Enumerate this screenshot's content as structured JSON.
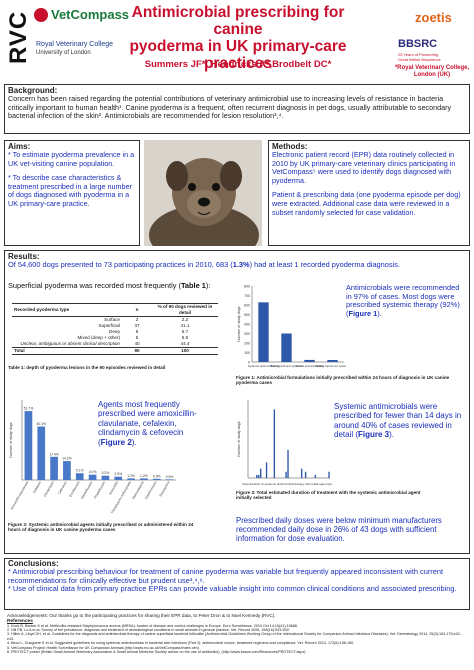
{
  "header": {
    "rvc_logo": "RVC",
    "vetcompass_logo": "VetCompass",
    "rvc_name_line1": "Royal Veterinary College",
    "rvc_name_line2": "University of London",
    "title_line1": "Antimicrobial prescribing for canine",
    "title_line2": "pyoderma in UK primary-care practices",
    "authors": "Summers JF*, Hendricks A*,Brodbelt DC*",
    "affil_line1": "*Royal Veterinary College,",
    "affil_line2": "London (UK)",
    "zoetis_logo": "zoetis",
    "bbsrc_logo": "BBSRC",
    "bbsrc_sub1": "25 Years of Pioneering",
    "bbsrc_sub2": "Great British Bioscience"
  },
  "background": {
    "heading": "Background:",
    "text": "Concern has been raised regarding the potential contributions of veterinary antimicrobial use to increasing levels of resistance in bacteria critically important to human health¹. Canine pyoderma is a frequent, often recurrent diagnosis in pet dogs, usually attributable to secondary bacterial infection of the skin². Antimicrobials are recommended for lesion resolution³,⁴."
  },
  "aims": {
    "heading": "Aims:",
    "bullet1": "* To estimate pyoderma prevalence in a UK vet-visiting canine population.",
    "bullet2": "* To describe case characteristics & treatment prescribed in a large number of dogs diagnosed with pyoderma in a UK primary-care practice."
  },
  "methods": {
    "heading": "Methods:",
    "text1": "Electronic patient record (EPR) data routinely collected in 2010 by UK primary-care veterinary clinics participating in VetCompass⁵ were used to identify dogs diagnosed with pyoderma.",
    "text2": "Patient & prescribing data (one pyoderma episode per dog) were extracted.  Additional case data were reviewed in a subset randomly selected for case validation."
  },
  "results": {
    "heading": "Results:",
    "intro_a": "Of 54,600 dogs presented to 73 participating practices in 2010, 683 (",
    "intro_pct": "1.3%",
    "intro_b": ") had at least 1 recorded pyoderma diagnosis.",
    "table_intro_a": "Superficial pyoderma was recorded most frequently (",
    "table_intro_ref": "Table 1",
    "table_intro_b": "):",
    "table": {
      "col1": "Recorded pyoderma type",
      "col2": "% of 90 dogs reviewed in detail",
      "col_n": "n",
      "rows": [
        {
          "type": "Surface",
          "n": "2",
          "pct": "2.2"
        },
        {
          "type": "Superficial",
          "n": "37",
          "pct": "41.1"
        },
        {
          "type": "Deep",
          "n": "6",
          "pct": "6.7"
        },
        {
          "type": "Mixed (deep + other)",
          "n": "5",
          "pct": "5.6"
        },
        {
          "type": "Unclear, ambiguous or absent clinical description",
          "n": "40",
          "pct": "44.4"
        },
        {
          "type": "Total",
          "n": "90",
          "pct": "100"
        }
      ]
    },
    "table_caption": "Table 1: depth of pyoderma lesions in the 90 episodes reviewed in detail",
    "fig1_text_a": "Antimicrobials were recommended in 97% of cases. Most dogs were prescribed systemic therapy (92%) (",
    "fig1_text_ref": "Figure 1",
    "fig1_text_b": ").",
    "fig1_caption": "Figure 1: Antimicrobial formulations initially prescribed within 24 hours of diagnosis in UK canine pyoderma cases",
    "fig2_text_a": "Agents most frequently prescribed were amoxicillin-clavulanate, cefalexin, clindamycin & cefovecin (",
    "fig2_text_ref": "Figure 2",
    "fig2_text_b": ").",
    "fig2_caption": "Figure 2: Systemic antimicrobial agents initially prescribed or administered within 24 hours of diagnosis in UK canine pyoderma cases",
    "fig3_text_a": "Systemic antimicrobials were prescribed for fewer than 14 days in around 40% of cases reviewed in detail (",
    "fig3_text_ref": "Figure 3",
    "fig3_text_b": ").",
    "fig3_caption": "Figure 3: Total estimated duration of treatment with the systemic antimicrobial agent initially selected",
    "dose_text": "Prescribed daily doses were below minimum manufacturers recommended daily dose in 26% of 43 dogs with sufficient information for dose evaluation."
  },
  "conclusions": {
    "heading": "Conclusions:",
    "bullet1": "* Antimicrobial prescribing behaviour for treatment of canine pyoderma was variable but frequently appeared inconsistent with current recommendations for clinically effective but prudent use³,⁴,⁶.",
    "bullet2": "* Use of clinical data from primary practice EPRs can provide valuable insight into common clinical conditions and associated prescribing."
  },
  "footer": {
    "ack": "Acknowledgements: Our thanks go to the participating practices for sharing their EPR data, to Peter Dron & to Noel Kennedy (RVC).",
    "ref_heading": "References",
    "refs": [
      "1. Kock R, Becker K et al. Methicillin-resistant Staphylococcus aureus (MRSA): burden of disease and control challenges in Europe. Euro Surveillance. 2010 Oct 14;15(41):19688.",
      "2. Hill PB, Lo A et al. Survey of the prevalence, diagnosis and treatment of dermatological conditions in small animals in general practice. Vet. Record 2006, 158(16):533-539.",
      "3. Hillier A, Lloyd DH, et al. Guidelines for the diagnosis and antimicrobial therapy of canine superficial bacterial folliculitis (Antimicrobial Guidelines Working Group of the International Society for Companion Animal Infectious Diseases). Vet. Dermatology 2014, 25(3):163-175,e42-e43.",
      "4. Beco L, Guaguere E et al. Suggested guidelines for using systemic antimicrobials in bacterial skin infections (Part 2): antimicrobial choice, treatment regimens and compliance. Vet. Record 2013, 172(6):156-160.",
      "5. VetCompass Project: Health Surveillance for UK Companion Animals (http://www.rvc.ac.uk/VetCompass/Index.cfm)",
      "6. PROTECT poster (British Small Animal Veterinary Association & Small Animal Medicine Society advice on the use of antibiotics). (http://www.bsava.com/Resources/PROTECT.aspx)"
    ]
  },
  "colors": {
    "title": "#c8102e",
    "body_blue": "#1a2fb8",
    "bar_blue": "#2d57a8",
    "bar_light": "#4a78c9"
  },
  "chart_data": [
    {
      "type": "bar",
      "title": "",
      "ylabel": "Number of study dogs",
      "xlabel": "",
      "ylim": [
        0,
        800
      ],
      "yticks": [
        0,
        100,
        200,
        300,
        400,
        500,
        600,
        700,
        800
      ],
      "categories": [
        "Systemic antimicrobial(s)",
        "Both topical and systemic",
        "Topical antimicrobial(s)",
        "Neither topical nor systemic"
      ],
      "values": [
        628,
        300,
        22,
        21
      ],
      "labels": [
        "",
        "",
        "",
        ""
      ]
    },
    {
      "type": "bar",
      "title": "",
      "ylabel": "Number of study dogs",
      "xlabel": "",
      "ylim": [
        0,
        60
      ],
      "categories": [
        "Amoxicillin-clavulanate",
        "Cefalexin",
        "Clindamycin",
        "Cefovecin",
        "Enrofloxacin",
        "Marbofloxacin",
        "Pradofloxacin",
        "Amoxicillin",
        "Trimethoprim-sulfonamide",
        "Metronidazole",
        "Clarithromycin",
        "Doxycycline"
      ],
      "values": [
        51.7,
        40.1,
        17.4,
        14.2,
        5.1,
        4.0,
        3.2,
        2.5,
        1.2,
        1.2,
        0.9,
        0.5
      ],
      "labels": [
        "51.7%",
        "40.1%",
        "17.4%",
        "14.2%",
        "5.1%",
        "4.0%",
        "3.2%",
        "2.5%",
        "1.2%",
        "1.2%",
        "0.9%",
        "0.5%"
      ]
    },
    {
      "type": "bar",
      "title": "",
      "ylabel": "Number of study dogs",
      "xlabel": "Total duration of systemic antimicrobial therapy with initial agent (days)",
      "ylim": [
        0,
        25
      ],
      "x": [
        1,
        2,
        3,
        4,
        5,
        6,
        7,
        8,
        9,
        10,
        11,
        12,
        13,
        14,
        15,
        16,
        17,
        18,
        19,
        20,
        21,
        22,
        23,
        24,
        25,
        26,
        27,
        28,
        29,
        30,
        31,
        32,
        33,
        34,
        35,
        36,
        37,
        38,
        39,
        40,
        41,
        42
      ],
      "values": [
        0,
        0,
        0,
        0,
        1,
        1,
        3,
        0,
        0,
        5,
        0,
        0,
        0,
        22,
        0,
        0,
        0,
        0,
        0,
        2,
        9,
        0,
        0,
        0,
        0,
        0,
        0,
        3,
        0,
        2,
        0,
        0,
        0,
        0,
        1,
        0,
        0,
        0,
        0,
        0,
        0,
        2
      ]
    }
  ]
}
